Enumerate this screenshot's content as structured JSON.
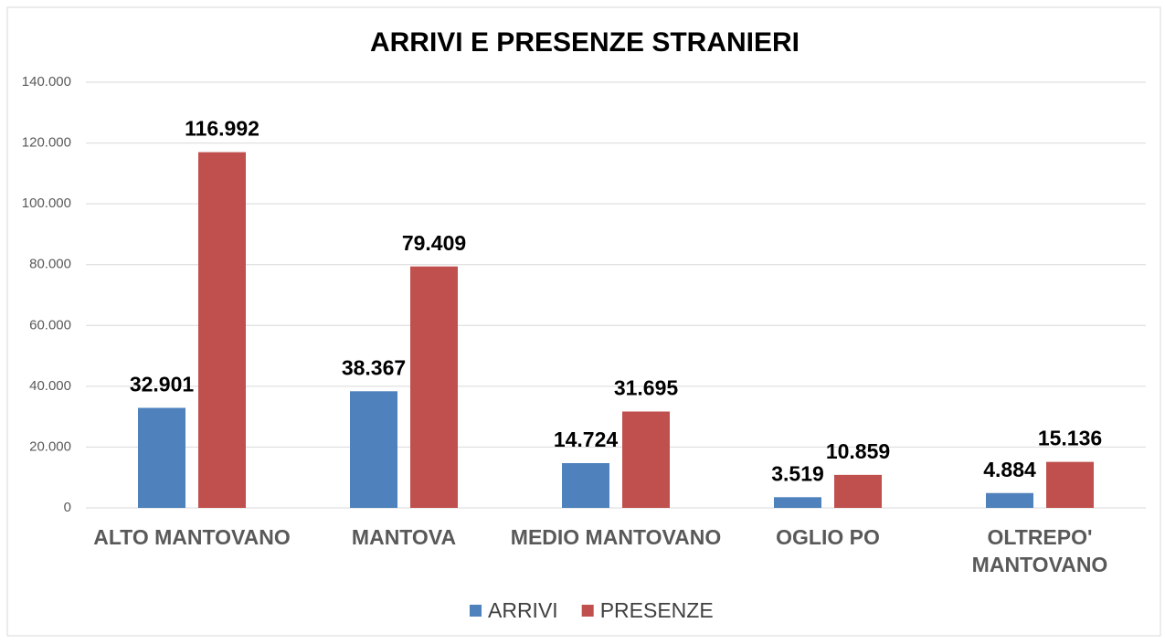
{
  "chart_data": {
    "type": "bar",
    "title": "ARRIVI E PRESENZE STRANIERI",
    "categories": [
      "ALTO MANTOVANO",
      "MANTOVA",
      "MEDIO MANTOVANO",
      "OGLIO PO",
      "OLTREPO' MANTOVANO"
    ],
    "series": [
      {
        "name": "ARRIVI",
        "color": "#4f81bd",
        "values": [
          32901,
          38367,
          14724,
          3519,
          4884
        ],
        "value_labels": [
          "32.901",
          "38.367",
          "14.724",
          "3.519",
          "4.884"
        ]
      },
      {
        "name": "PRESENZE",
        "color": "#c0504d",
        "values": [
          116992,
          79409,
          31695,
          10859,
          15136
        ],
        "value_labels": [
          "116.992",
          "79.409",
          "31.695",
          "10.859",
          "15.136"
        ]
      }
    ],
    "ylim": [
      0,
      140000
    ],
    "yticks": [
      0,
      {
        "value": 20000,
        "label": "20.000"
      },
      {
        "value": 40000,
        "label": "40.000"
      },
      {
        "value": 60000,
        "label": "60.000"
      },
      {
        "value": 80000,
        "label": "80.000"
      },
      {
        "value": 100000,
        "label": "100.000"
      },
      {
        "value": 120000,
        "label": "120.000"
      },
      {
        "value": 140000,
        "label": "140.000"
      }
    ],
    "grid": true,
    "legend": "bottom"
  }
}
